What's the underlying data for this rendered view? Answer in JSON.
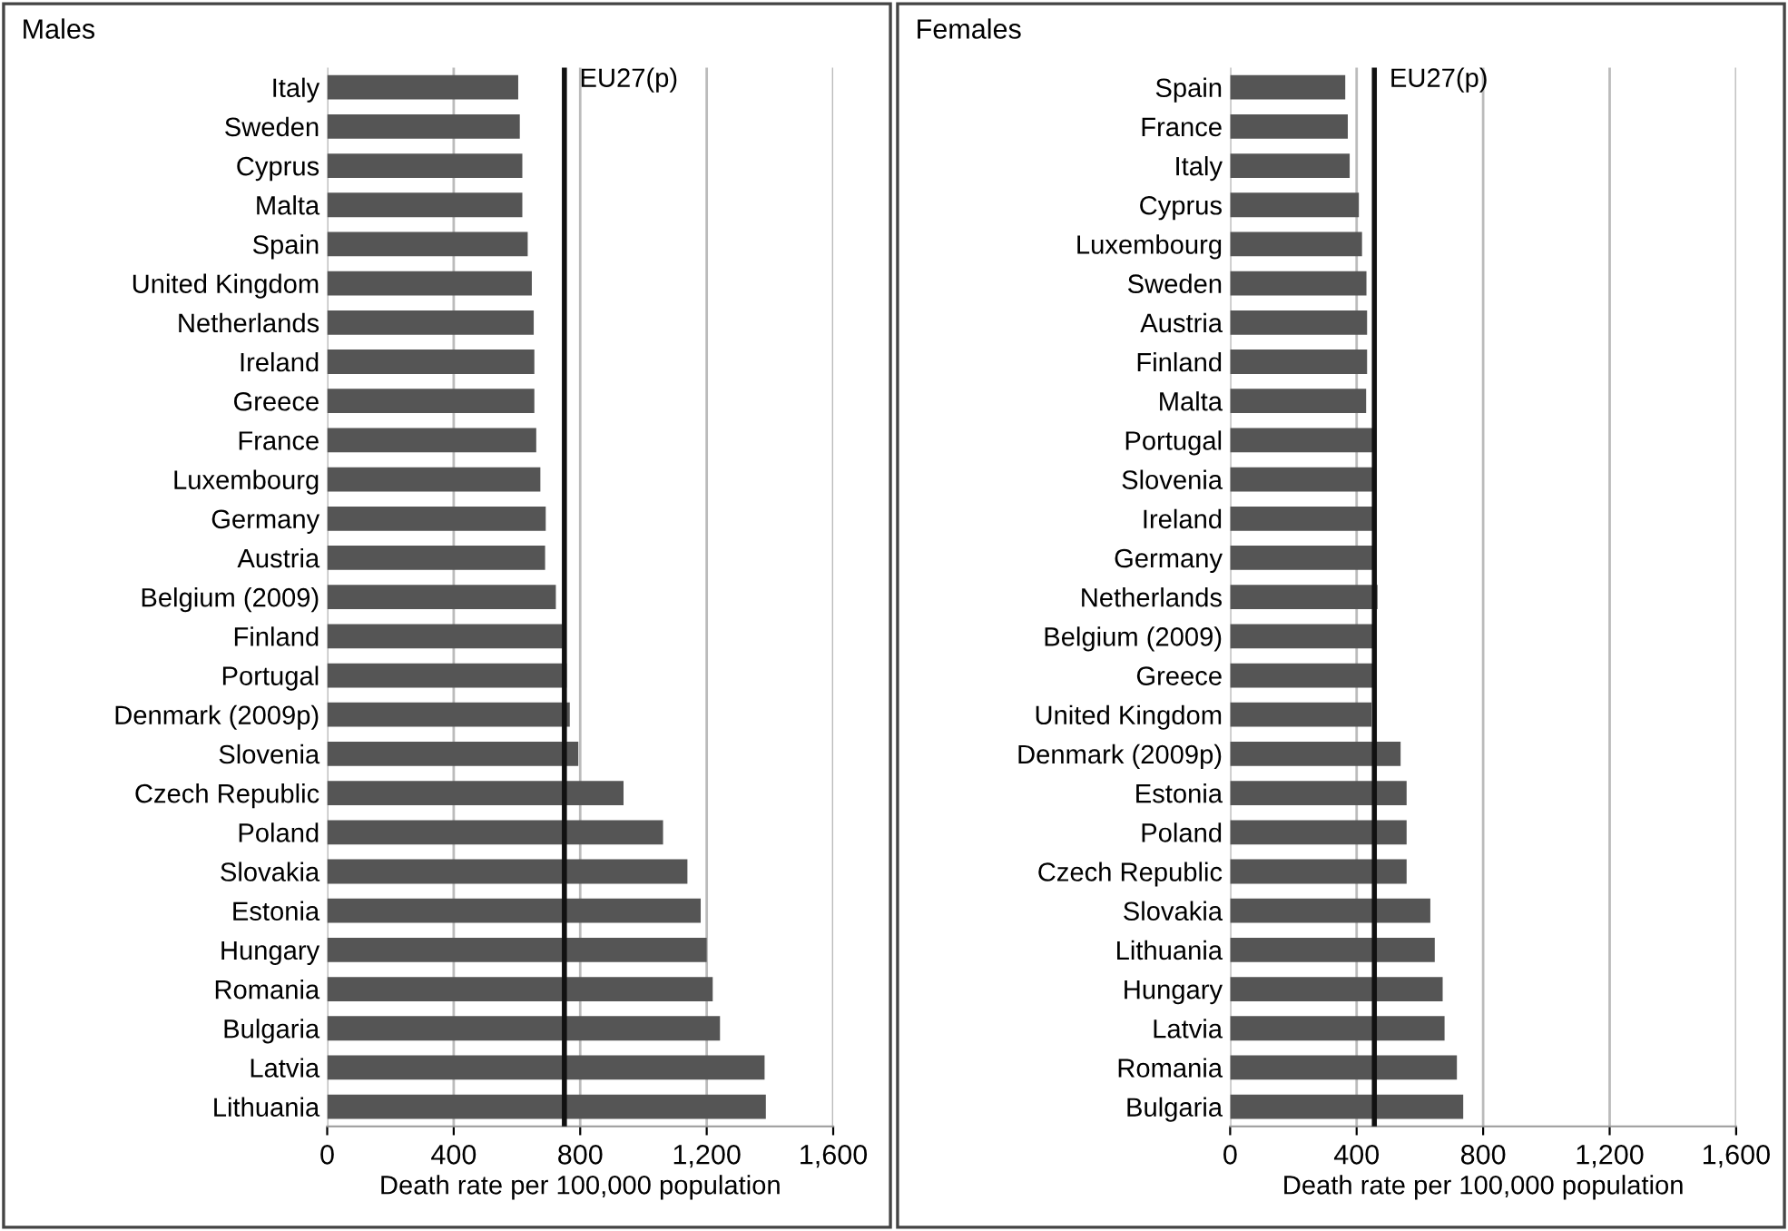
{
  "chart_data": [
    {
      "type": "bar",
      "orientation": "horizontal",
      "title": "Males",
      "xlabel": "Death rate per 100,000 population",
      "categories": [
        "Italy",
        "Sweden",
        "Cyprus",
        "Malta",
        "Spain",
        "United Kingdom",
        "Netherlands",
        "Ireland",
        "Greece",
        "France",
        "Luxembourg",
        "Germany",
        "Austria",
        "Belgium (2009)",
        "Finland",
        "Portugal",
        "Denmark (2009p)",
        "Slovenia",
        "Czech Republic",
        "Poland",
        "Slovakia",
        "Estonia",
        "Hungary",
        "Romania",
        "Bulgaria",
        "Latvia",
        "Lithuania"
      ],
      "values": [
        604,
        609,
        617,
        617,
        634,
        647,
        653,
        655,
        655,
        661,
        674,
        691,
        689,
        723,
        743,
        757,
        767,
        794,
        937,
        1062,
        1139,
        1181,
        1200,
        1219,
        1242,
        1383,
        1387
      ],
      "color": "#555555",
      "xlim": [
        0,
        1600
      ],
      "xticks": [
        0,
        400,
        {
          "value": 800,
          "label": "800"
        },
        {
          "value": 1200,
          "label": "1,200"
        },
        {
          "value": 1600,
          "label": "1,600"
        }
      ],
      "grid": "x",
      "ref_lines": [
        {
          "axis": "x",
          "value": 750,
          "label": "EU27(p)",
          "color": "#111111"
        }
      ]
    },
    {
      "type": "bar",
      "orientation": "horizontal",
      "title": "Females",
      "xlabel": "Death rate per 100,000 population",
      "categories": [
        "Spain",
        "France",
        "Italy",
        "Cyprus",
        "Luxembourg",
        "Sweden",
        "Austria",
        "Finland",
        "Malta",
        "Portugal",
        "Slovenia",
        "Ireland",
        "Germany",
        "Netherlands",
        "Belgium (2009)",
        "Greece",
        "United Kingdom",
        "Denmark (2009p)",
        "Estonia",
        "Poland",
        "Czech Republic",
        "Slovakia",
        "Lithuania",
        "Hungary",
        "Latvia",
        "Romania",
        "Bulgaria"
      ],
      "values": [
        364,
        372,
        378,
        407,
        417,
        431,
        433,
        433,
        430,
        452,
        456,
        459,
        459,
        466,
        452,
        459,
        447,
        539,
        558,
        558,
        558,
        633,
        647,
        672,
        678,
        717,
        737
      ],
      "color": "#555555",
      "xlim": [
        0,
        1600
      ],
      "xticks": [
        0,
        400,
        800,
        {
          "value": 1200,
          "label": "1,200"
        },
        {
          "value": 1600,
          "label": "1,600"
        }
      ],
      "grid": "x",
      "ref_lines": [
        {
          "axis": "x",
          "value": 456,
          "label": "EU27(p)",
          "color": "#111111"
        }
      ]
    }
  ]
}
